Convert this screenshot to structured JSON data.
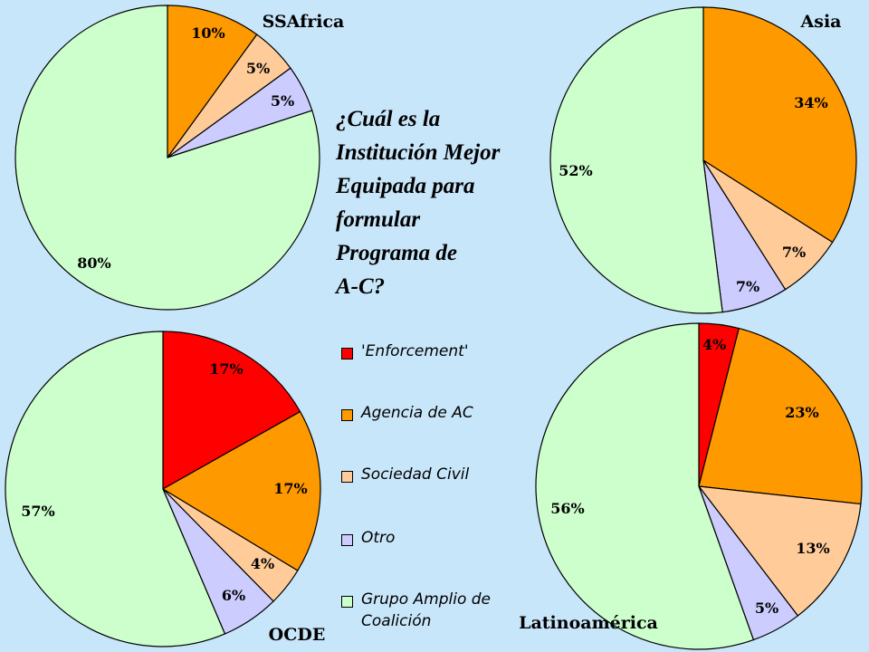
{
  "question": {
    "lines": [
      "¿Cuál es la",
      "Institución Mejor",
      "Equipada para",
      "formular",
      "Programa de",
      "A-C?"
    ]
  },
  "legend": [
    {
      "label": "'Enforcement'",
      "color": "#ff0000"
    },
    {
      "label": "Agencia de AC",
      "color": "#ff9900"
    },
    {
      "label": "Sociedad Civil",
      "color": "#ffcc99"
    },
    {
      "label": "Otro",
      "color": "#ccccff"
    },
    {
      "label": "Grupo Amplio de Coalición",
      "color": "#ccffcc"
    }
  ],
  "chart_data": [
    {
      "type": "pie",
      "title": "SSAfrica",
      "series": [
        {
          "values": [
            {
              "category": "'Enforcement'",
              "value": 0
            },
            {
              "category": "Agencia de AC",
              "value": 10,
              "label": "10%"
            },
            {
              "category": "Sociedad Civil",
              "value": 5,
              "label": "5%"
            },
            {
              "category": "Otro",
              "value": 5,
              "label": "5%"
            },
            {
              "category": "Grupo Amplio de Coalición",
              "value": 80,
              "label": "80%"
            }
          ]
        }
      ]
    },
    {
      "type": "pie",
      "title": "Asia",
      "series": [
        {
          "values": [
            {
              "category": "'Enforcement'",
              "value": 0
            },
            {
              "category": "Agencia de AC",
              "value": 34,
              "label": "34%"
            },
            {
              "category": "Sociedad Civil",
              "value": 7,
              "label": "7%"
            },
            {
              "category": "Otro",
              "value": 7,
              "label": "7%"
            },
            {
              "category": "Grupo Amplio de Coalición",
              "value": 52,
              "label": "52%"
            }
          ]
        }
      ]
    },
    {
      "type": "pie",
      "title": "OCDE",
      "series": [
        {
          "values": [
            {
              "category": "'Enforcement'",
              "value": 17,
              "label": "17%"
            },
            {
              "category": "Agencia de AC",
              "value": 17,
              "label": "17%"
            },
            {
              "category": "Sociedad Civil",
              "value": 4,
              "label": "4%"
            },
            {
              "category": "Otro",
              "value": 6,
              "label": "6%"
            },
            {
              "category": "Grupo Amplio de Coalición",
              "value": 57,
              "label": "57%"
            }
          ]
        }
      ]
    },
    {
      "type": "pie",
      "title": "Latinoamérica",
      "series": [
        {
          "values": [
            {
              "category": "'Enforcement'",
              "value": 4,
              "label": "4%"
            },
            {
              "category": "Agencia de AC",
              "value": 23,
              "label": "23%"
            },
            {
              "category": "Sociedad Civil",
              "value": 13,
              "label": "13%"
            },
            {
              "category": "Otro",
              "value": 5,
              "label": "5%"
            },
            {
              "category": "Grupo Amplio de Coalición",
              "value": 56,
              "label": "56%"
            }
          ]
        }
      ]
    }
  ]
}
